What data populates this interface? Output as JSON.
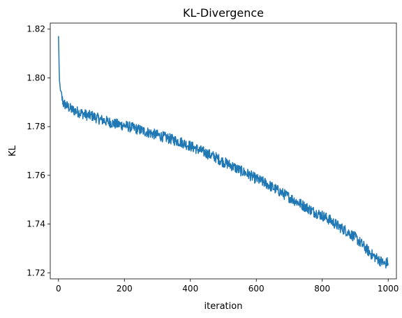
{
  "chart_data": {
    "type": "line",
    "title": "KL-Divergence",
    "xlabel": "iteration",
    "ylabel": "KL",
    "xlim": [
      -25,
      1025
    ],
    "ylim": [
      1.7175,
      1.8225
    ],
    "xticks": [
      0,
      200,
      400,
      600,
      800,
      1000
    ],
    "yticks": [
      1.72,
      1.74,
      1.76,
      1.78,
      1.8,
      1.82
    ],
    "xtick_labels": [
      "0",
      "200",
      "400",
      "600",
      "800",
      "1000"
    ],
    "ytick_labels": [
      "1.72",
      "1.74",
      "1.76",
      "1.78",
      "1.80",
      "1.82"
    ],
    "grid": false,
    "line_color": "#1f77b4",
    "series": [
      {
        "x": [
          0,
          1,
          2,
          3,
          4,
          5,
          6,
          8,
          10,
          12,
          15,
          20,
          25,
          30,
          40,
          50,
          60,
          70,
          80,
          90,
          100,
          125,
          150,
          175,
          200,
          225,
          250,
          275,
          300,
          325,
          350,
          375,
          400,
          425,
          450,
          475,
          500,
          525,
          550,
          575,
          600,
          625,
          650,
          675,
          700,
          725,
          750,
          775,
          800,
          825,
          850,
          875,
          900,
          925,
          950,
          975,
          990,
          1000
        ],
        "y": [
          1.817,
          1.811,
          1.804,
          1.7985,
          1.7975,
          1.796,
          1.795,
          1.7935,
          1.792,
          1.791,
          1.7895,
          1.789,
          1.7885,
          1.788,
          1.787,
          1.7865,
          1.786,
          1.7855,
          1.785,
          1.7845,
          1.7845,
          1.783,
          1.782,
          1.781,
          1.7805,
          1.7795,
          1.7785,
          1.7775,
          1.7765,
          1.7755,
          1.7745,
          1.7735,
          1.772,
          1.7705,
          1.769,
          1.7675,
          1.7655,
          1.764,
          1.762,
          1.7605,
          1.7585,
          1.757,
          1.755,
          1.753,
          1.751,
          1.749,
          1.747,
          1.745,
          1.7435,
          1.7415,
          1.739,
          1.737,
          1.7345,
          1.731,
          1.7275,
          1.725,
          1.7235,
          1.7245
        ]
      }
    ]
  }
}
